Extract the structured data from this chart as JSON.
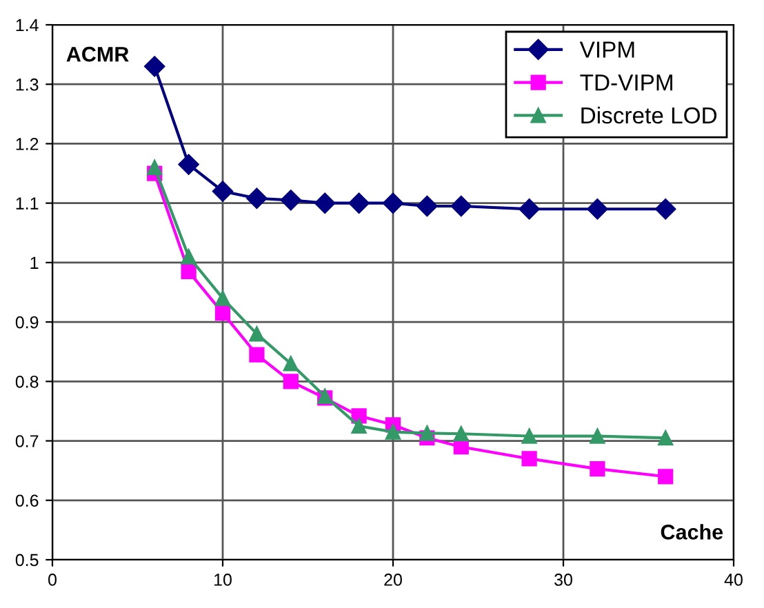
{
  "chart_data": {
    "type": "line",
    "xlabel": "Cache",
    "ylabel": "ACMR",
    "x": [
      6,
      8,
      10,
      12,
      14,
      16,
      18,
      20,
      22,
      24,
      28,
      32,
      36
    ],
    "series": [
      {
        "name": "VIPM",
        "color": "#000080",
        "marker": "diamond",
        "values": [
          1.33,
          1.165,
          1.12,
          1.108,
          1.105,
          1.1,
          1.1,
          1.1,
          1.095,
          1.095,
          1.09,
          1.09,
          1.09
        ]
      },
      {
        "name": "TD-VIPM",
        "color": "#ff00ff",
        "marker": "square",
        "values": [
          1.15,
          0.985,
          0.915,
          0.845,
          0.8,
          0.772,
          0.742,
          0.727,
          0.705,
          0.69,
          0.67,
          0.653,
          0.64
        ]
      },
      {
        "name": "Discrete LOD",
        "color": "#339966",
        "marker": "triangle",
        "values": [
          1.16,
          1.01,
          0.94,
          0.88,
          0.83,
          0.775,
          0.725,
          0.715,
          0.713,
          0.712,
          0.708,
          0.708,
          0.705
        ]
      }
    ],
    "xlim": [
      0,
      40
    ],
    "xticks": [
      0,
      10,
      20,
      30,
      40
    ],
    "ylim": [
      0.5,
      1.4
    ],
    "yticks": [
      0.5,
      0.6,
      0.7,
      0.8,
      0.9,
      1,
      1.1,
      1.2,
      1.3,
      1.4
    ],
    "grid": true,
    "legend": "top right",
    "line_style": "solid"
  }
}
